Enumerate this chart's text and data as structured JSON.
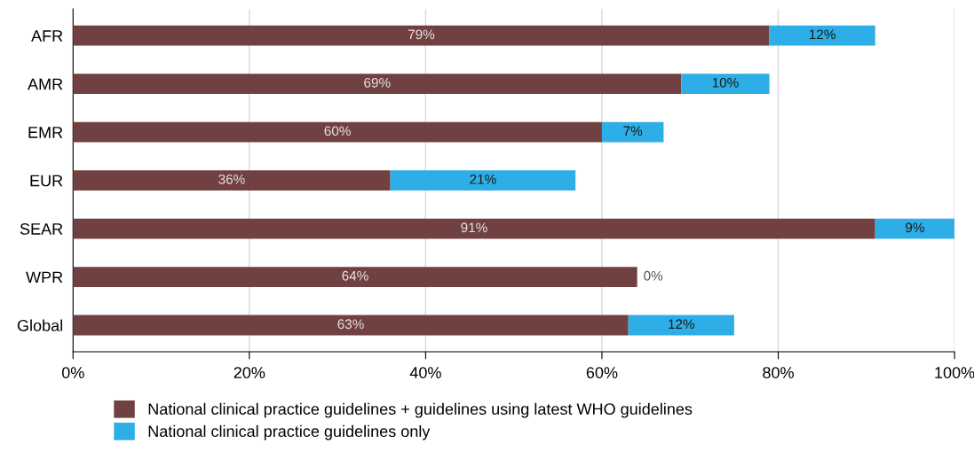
{
  "chart_data": {
    "type": "bar",
    "orientation": "horizontal",
    "stacked": true,
    "categories": [
      "AFR",
      "AMR",
      "EMR",
      "EUR",
      "SEAR",
      "WPR",
      "Global"
    ],
    "series": [
      {
        "name": "National clinical practice guidelines + guidelines using latest WHO guidelines",
        "color": "#714141",
        "values": [
          79,
          69,
          60,
          36,
          91,
          64,
          63
        ],
        "value_labels": [
          "79%",
          "69%",
          "60%",
          "36%",
          "91%",
          "64%",
          "63%"
        ]
      },
      {
        "name": "National clinical practice guidelines only",
        "color": "#2eaee6",
        "values": [
          12,
          10,
          7,
          21,
          9,
          0,
          12
        ],
        "value_labels": [
          "12%",
          "10%",
          "7%",
          "21%",
          "9%",
          "0%",
          "12%"
        ]
      }
    ],
    "xlim": [
      0,
      100
    ],
    "xticks": [
      {
        "value": 0,
        "label": "0%"
      },
      {
        "value": 20,
        "label": "20%"
      },
      {
        "value": 40,
        "label": "40%"
      },
      {
        "value": 60,
        "label": "60%"
      },
      {
        "value": 80,
        "label": "80%"
      },
      {
        "value": 100,
        "label": "100%"
      }
    ],
    "grid": "x",
    "legend": "bottom"
  }
}
